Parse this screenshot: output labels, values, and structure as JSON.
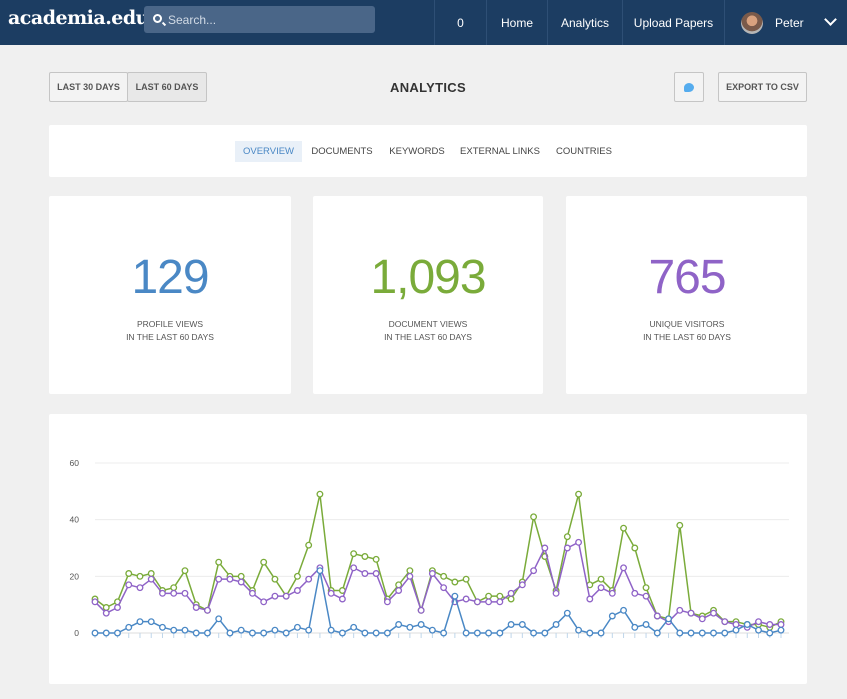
{
  "nav": {
    "logo": "academia.edu",
    "search_placeholder": "Search...",
    "notifications_count": "0",
    "home": "Home",
    "analytics": "Analytics",
    "upload": "Upload Papers",
    "user_name": "Peter"
  },
  "controls": {
    "range_30": "LAST 30 DAYS",
    "range_60": "LAST 60 DAYS",
    "title": "ANALYTICS",
    "export": "EXPORT TO CSV"
  },
  "tabs": [
    "OVERVIEW",
    "DOCUMENTS",
    "KEYWORDS",
    "EXTERNAL LINKS",
    "COUNTRIES"
  ],
  "stats": [
    {
      "value": "129",
      "line1": "PROFILE VIEWS",
      "line2": "IN THE LAST 60 DAYS",
      "color": "#4a88c5"
    },
    {
      "value": "1,093",
      "line1": "DOCUMENT VIEWS",
      "line2": "IN THE LAST 60 DAYS",
      "color": "#7aab3a"
    },
    {
      "value": "765",
      "line1": "UNIQUE VISITORS",
      "line2": "IN THE LAST 60 DAYS",
      "color": "#8f63c7"
    }
  ],
  "chart_data": {
    "type": "line",
    "ylim": [
      0,
      60
    ],
    "yticks": [
      0,
      20,
      40,
      60
    ],
    "grid": true,
    "x": [
      1,
      2,
      3,
      4,
      5,
      6,
      7,
      8,
      9,
      10,
      11,
      12,
      13,
      14,
      15,
      16,
      17,
      18,
      19,
      20,
      21,
      22,
      23,
      24,
      25,
      26,
      27,
      28,
      29,
      30,
      31,
      32,
      33,
      34,
      35,
      36,
      37,
      38,
      39,
      40,
      41,
      42,
      43,
      44,
      45,
      46,
      47,
      48,
      49,
      50,
      51,
      52,
      53,
      54,
      55,
      56,
      57,
      58,
      59,
      60,
      61,
      62
    ],
    "series": [
      {
        "color": "#7aab3a",
        "values": [
          12,
          9,
          11,
          21,
          20,
          21,
          15,
          16,
          22,
          10,
          8,
          25,
          20,
          20,
          15,
          25,
          19,
          13,
          20,
          31,
          49,
          15,
          15,
          28,
          27,
          26,
          12,
          17,
          22,
          8,
          22,
          20,
          18,
          19,
          11,
          13,
          13,
          12,
          18,
          41,
          27,
          15,
          34,
          49,
          17,
          19,
          15,
          37,
          30,
          16,
          6,
          5,
          38,
          7,
          6,
          8,
          4,
          4,
          3,
          3,
          2,
          4
        ]
      },
      {
        "color": "#8f63c7",
        "values": [
          11,
          7,
          9,
          17,
          16,
          19,
          14,
          14,
          14,
          9,
          8,
          19,
          19,
          18,
          14,
          11,
          13,
          13,
          15,
          19,
          23,
          14,
          12,
          23,
          21,
          21,
          11,
          15,
          20,
          8,
          21,
          16,
          11,
          12,
          11,
          11,
          11,
          14,
          17,
          22,
          30,
          14,
          30,
          32,
          12,
          16,
          14,
          23,
          14,
          13,
          6,
          4,
          8,
          7,
          5,
          7,
          4,
          3,
          2,
          4,
          3,
          3
        ]
      },
      {
        "color": "#4a88c5",
        "values": [
          0,
          0,
          0,
          2,
          4,
          4,
          2,
          1,
          1,
          0,
          0,
          5,
          0,
          1,
          0,
          0,
          1,
          0,
          2,
          1,
          22,
          1,
          0,
          2,
          0,
          0,
          0,
          3,
          2,
          3,
          1,
          0,
          13,
          0,
          0,
          0,
          0,
          3,
          3,
          0,
          0,
          3,
          7,
          1,
          0,
          0,
          6,
          8,
          2,
          3,
          0,
          5,
          0,
          0,
          0,
          0,
          0,
          1,
          3,
          1,
          0,
          1
        ]
      }
    ]
  }
}
